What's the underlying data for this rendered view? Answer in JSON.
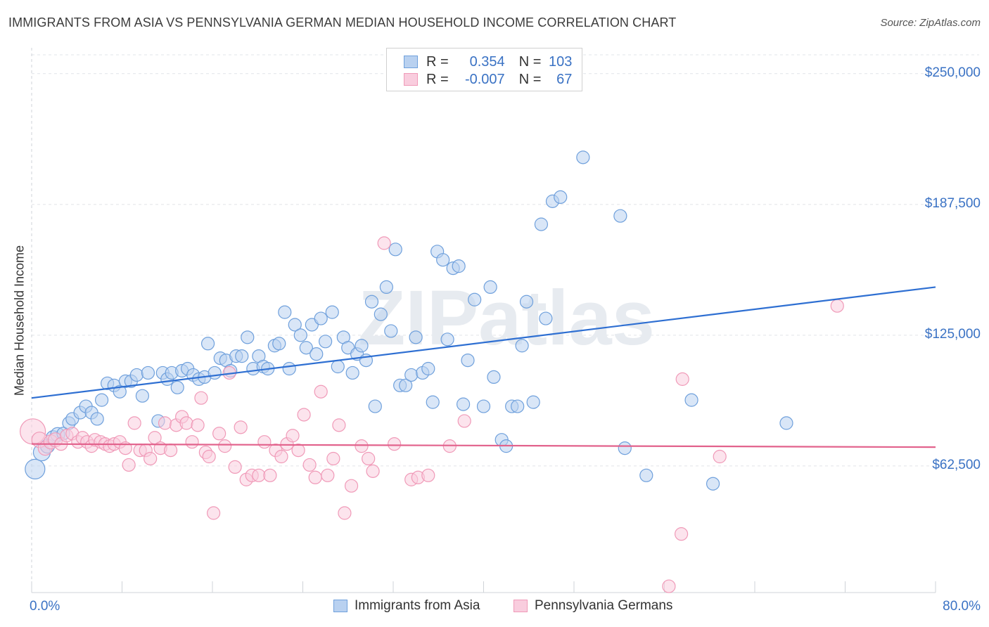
{
  "chart_data": {
    "type": "scatter",
    "title": "IMMIGRANTS FROM ASIA VS PENNSYLVANIA GERMAN MEDIAN HOUSEHOLD INCOME CORRELATION CHART",
    "source": "Source: ZipAtlas.com",
    "ylabel": "Median Household Income",
    "watermark": "ZIPatlas",
    "xlim": [
      0,
      80
    ],
    "ylim": [
      2000,
      259000
    ],
    "y_ticks": [
      {
        "value": 250000,
        "label": "$250,000"
      },
      {
        "value": 187500,
        "label": "$187,500"
      },
      {
        "value": 125000,
        "label": "$125,000"
      },
      {
        "value": 62500,
        "label": "$62,500"
      }
    ],
    "x_tick_labels": {
      "left": "0.0%",
      "right": "80.0%"
    },
    "x_minor_ticks": [
      0,
      8,
      16,
      24,
      32,
      40,
      48,
      56,
      64,
      72,
      80
    ],
    "legend": {
      "rows": [
        {
          "r_label": "R =",
          "r_value": "0.354",
          "n_label": "N =",
          "n_value": "103"
        },
        {
          "r_label": "R =",
          "r_value": "-0.007",
          "n_label": "N =",
          "n_value": "67"
        }
      ]
    },
    "series": [
      {
        "name": "Immigrants from Asia",
        "color": "#6fa0dc",
        "fill": "#b9d1f0",
        "line_color": "#2e6fd2",
        "trend": {
          "x0": 0,
          "y0": 95000,
          "x1": 80,
          "y1": 148000
        },
        "points": [
          [
            0.3,
            61000,
            14
          ],
          [
            0.9,
            69000,
            12
          ],
          [
            1.4,
            72000,
            10
          ],
          [
            1.9,
            76000,
            10
          ],
          [
            2.3,
            77500,
            10
          ],
          [
            2.8,
            78000,
            9
          ],
          [
            3.3,
            83000,
            9
          ],
          [
            3.6,
            85000,
            9
          ],
          [
            4.3,
            88000,
            9
          ],
          [
            4.8,
            91000,
            9
          ],
          [
            5.3,
            88000,
            9
          ],
          [
            5.8,
            85000,
            9
          ],
          [
            6.2,
            94000,
            9
          ],
          [
            6.7,
            102000,
            9
          ],
          [
            7.3,
            101000,
            9
          ],
          [
            7.8,
            98000,
            9
          ],
          [
            8.3,
            103000,
            9
          ],
          [
            8.8,
            103000,
            9
          ],
          [
            9.3,
            106000,
            9
          ],
          [
            9.8,
            96000,
            9
          ],
          [
            10.3,
            107000,
            9
          ],
          [
            11.2,
            84000,
            9
          ],
          [
            11.6,
            107000,
            9
          ],
          [
            12.0,
            104000,
            9
          ],
          [
            12.4,
            107000,
            9
          ],
          [
            12.9,
            100000,
            9
          ],
          [
            13.3,
            108000,
            9
          ],
          [
            13.8,
            109000,
            9
          ],
          [
            14.3,
            106000,
            9
          ],
          [
            14.8,
            104000,
            9
          ],
          [
            15.3,
            105000,
            9
          ],
          [
            15.6,
            121000,
            9
          ],
          [
            16.2,
            107000,
            9
          ],
          [
            16.7,
            114000,
            9
          ],
          [
            17.2,
            113000,
            9
          ],
          [
            17.6,
            108000,
            9
          ],
          [
            18.1,
            115000,
            9
          ],
          [
            18.6,
            115000,
            9
          ],
          [
            19.1,
            124000,
            9
          ],
          [
            19.6,
            109000,
            9
          ],
          [
            20.1,
            115000,
            9
          ],
          [
            20.5,
            110000,
            9
          ],
          [
            20.9,
            109000,
            9
          ],
          [
            21.5,
            120000,
            9
          ],
          [
            21.9,
            121000,
            9
          ],
          [
            22.4,
            136000,
            9
          ],
          [
            22.8,
            109000,
            9
          ],
          [
            23.3,
            130000,
            9
          ],
          [
            23.8,
            125000,
            9
          ],
          [
            24.3,
            119000,
            9
          ],
          [
            24.8,
            130000,
            9
          ],
          [
            25.2,
            116000,
            9
          ],
          [
            25.6,
            133000,
            9
          ],
          [
            26.0,
            122000,
            9
          ],
          [
            26.6,
            136000,
            9
          ],
          [
            27.1,
            110000,
            9
          ],
          [
            27.6,
            124000,
            9
          ],
          [
            28.0,
            119000,
            9
          ],
          [
            28.4,
            107000,
            9
          ],
          [
            28.8,
            116000,
            9
          ],
          [
            29.2,
            120000,
            9
          ],
          [
            29.6,
            113000,
            9
          ],
          [
            30.1,
            141000,
            9
          ],
          [
            30.4,
            91000,
            9
          ],
          [
            30.9,
            135000,
            9
          ],
          [
            31.4,
            148000,
            9
          ],
          [
            31.8,
            127000,
            9
          ],
          [
            32.2,
            166000,
            9
          ],
          [
            32.6,
            101000,
            9
          ],
          [
            33.1,
            101000,
            9
          ],
          [
            33.6,
            106000,
            9
          ],
          [
            34.0,
            124000,
            9
          ],
          [
            34.6,
            107000,
            9
          ],
          [
            35.1,
            109000,
            9
          ],
          [
            35.5,
            93000,
            9
          ],
          [
            35.9,
            165000,
            9
          ],
          [
            36.4,
            161000,
            9
          ],
          [
            36.8,
            123000,
            9
          ],
          [
            37.3,
            157000,
            9
          ],
          [
            37.8,
            158000,
            9
          ],
          [
            38.2,
            92000,
            9
          ],
          [
            38.6,
            113000,
            9
          ],
          [
            39.2,
            142000,
            9
          ],
          [
            40.0,
            91000,
            9
          ],
          [
            40.6,
            148000,
            9
          ],
          [
            40.9,
            105000,
            9
          ],
          [
            41.6,
            75000,
            9
          ],
          [
            42.0,
            72000,
            9
          ],
          [
            42.5,
            91000,
            9
          ],
          [
            43.0,
            91000,
            9
          ],
          [
            43.4,
            120000,
            9
          ],
          [
            43.8,
            141000,
            9
          ],
          [
            44.4,
            93000,
            9
          ],
          [
            45.1,
            178000,
            9
          ],
          [
            45.5,
            133000,
            9
          ],
          [
            46.1,
            189000,
            9
          ],
          [
            46.8,
            191000,
            9
          ],
          [
            48.8,
            210000,
            9
          ],
          [
            52.1,
            182000,
            9
          ],
          [
            52.5,
            71000,
            9
          ],
          [
            54.4,
            58000,
            9
          ],
          [
            58.4,
            94000,
            9
          ],
          [
            60.3,
            54000,
            9
          ],
          [
            66.8,
            83000,
            9
          ]
        ]
      },
      {
        "name": "Pennsylvania Germans",
        "color": "#f09ab8",
        "fill": "#f9cdde",
        "line_color": "#e2628c",
        "trend": {
          "x0": 0,
          "y0": 73000,
          "x1": 80,
          "y1": 71500
        },
        "points": [
          [
            0.1,
            79000,
            18
          ],
          [
            0.7,
            75000,
            11
          ],
          [
            1.2,
            71000,
            10
          ],
          [
            1.7,
            74000,
            10
          ],
          [
            2.1,
            75000,
            10
          ],
          [
            2.6,
            73000,
            9
          ],
          [
            3.1,
            77000,
            9
          ],
          [
            3.6,
            78000,
            9
          ],
          [
            4.1,
            74000,
            9
          ],
          [
            4.5,
            76000,
            9
          ],
          [
            4.9,
            74000,
            9
          ],
          [
            5.3,
            72000,
            9
          ],
          [
            5.6,
            75000,
            9
          ],
          [
            6.1,
            74000,
            9
          ],
          [
            6.5,
            73000,
            9
          ],
          [
            6.9,
            72000,
            9
          ],
          [
            7.3,
            73000,
            9
          ],
          [
            7.8,
            74000,
            9
          ],
          [
            8.3,
            71000,
            9
          ],
          [
            8.6,
            63000,
            9
          ],
          [
            9.1,
            83000,
            9
          ],
          [
            9.6,
            70000,
            9
          ],
          [
            10.1,
            70000,
            9
          ],
          [
            10.5,
            66000,
            9
          ],
          [
            10.9,
            76000,
            9
          ],
          [
            11.4,
            71000,
            9
          ],
          [
            11.8,
            83000,
            9
          ],
          [
            12.3,
            70000,
            9
          ],
          [
            12.8,
            82000,
            9
          ],
          [
            13.3,
            86000,
            9
          ],
          [
            13.7,
            83000,
            9
          ],
          [
            14.2,
            74000,
            9
          ],
          [
            14.7,
            82000,
            9
          ],
          [
            15.0,
            95000,
            9
          ],
          [
            15.4,
            69000,
            9
          ],
          [
            15.7,
            67000,
            9
          ],
          [
            16.1,
            40000,
            9
          ],
          [
            16.6,
            78000,
            9
          ],
          [
            17.1,
            72000,
            9
          ],
          [
            17.5,
            107000,
            9
          ],
          [
            18.0,
            62000,
            9
          ],
          [
            18.5,
            81000,
            9
          ],
          [
            19.0,
            56000,
            9
          ],
          [
            19.5,
            58000,
            9
          ],
          [
            20.1,
            58000,
            9
          ],
          [
            20.6,
            74000,
            9
          ],
          [
            21.1,
            58000,
            9
          ],
          [
            21.6,
            70000,
            9
          ],
          [
            22.1,
            67000,
            9
          ],
          [
            22.6,
            73000,
            9
          ],
          [
            23.1,
            77000,
            9
          ],
          [
            23.6,
            70000,
            9
          ],
          [
            24.1,
            87000,
            9
          ],
          [
            24.6,
            63000,
            9
          ],
          [
            25.1,
            57000,
            9
          ],
          [
            25.6,
            98000,
            9
          ],
          [
            26.2,
            58000,
            9
          ],
          [
            26.7,
            66000,
            9
          ],
          [
            27.2,
            82000,
            9
          ],
          [
            27.7,
            40000,
            9
          ],
          [
            28.3,
            53000,
            9
          ],
          [
            29.2,
            72000,
            9
          ],
          [
            29.8,
            66000,
            9
          ],
          [
            30.2,
            60000,
            9
          ],
          [
            31.2,
            169000,
            9
          ],
          [
            32.1,
            73000,
            9
          ],
          [
            33.6,
            56000,
            9
          ],
          [
            34.2,
            57000,
            9
          ],
          [
            35.1,
            58000,
            9
          ],
          [
            37.0,
            72000,
            9
          ],
          [
            38.3,
            84000,
            9
          ],
          [
            57.5,
            30000,
            9
          ],
          [
            56.4,
            5000,
            9
          ],
          [
            57.6,
            104000,
            9
          ],
          [
            60.9,
            67000,
            9
          ],
          [
            71.3,
            139000,
            9
          ]
        ]
      }
    ]
  },
  "bottom_legend": [
    {
      "label": "Immigrants from Asia"
    },
    {
      "label": "Pennsylvania Germans"
    }
  ]
}
